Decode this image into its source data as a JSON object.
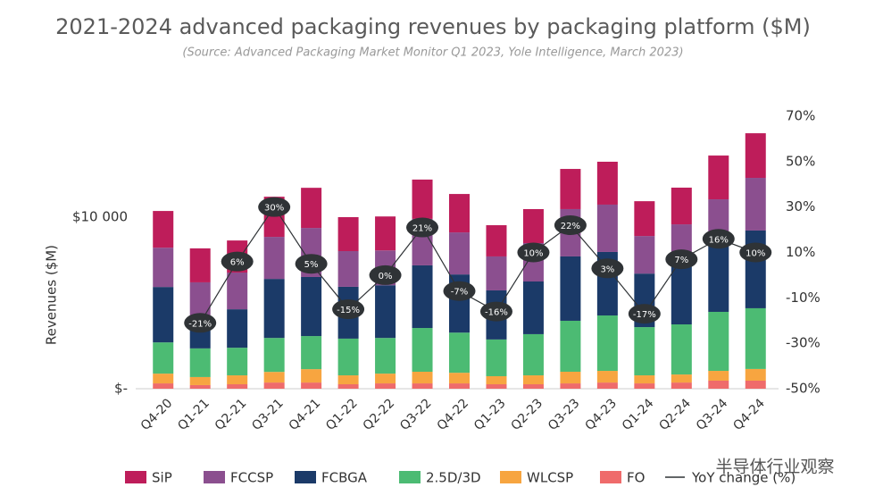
{
  "chart_data": {
    "type": "stacked_bar_line",
    "title": "2021-2024 advanced packaging revenues by packaging platform ($M)",
    "subtitle": "(Source: Advanced Packaging Market Monitor Q1 2023, Yole Intelligence, March 2023)",
    "y_label": "Revenues ($M)",
    "watermark": "半导体行业观察",
    "categories": [
      "Q4-20",
      "Q1-21",
      "Q2-21",
      "Q3-21",
      "Q4-21",
      "Q1-22",
      "Q2-22",
      "Q3-22",
      "Q4-22",
      "Q1-23",
      "Q2-23",
      "Q3-23",
      "Q4-23",
      "Q1-24",
      "Q2-24",
      "Q3-24",
      "Q4-24"
    ],
    "ylim": [
      0,
      15885
    ],
    "yticks": [
      {
        "value": 0,
        "label": "$-"
      },
      {
        "value": 10000,
        "label": "$10 000"
      }
    ],
    "y2lim": [
      -50,
      70
    ],
    "y2ticks": [
      {
        "value": 70,
        "label": "70%"
      },
      {
        "value": 50,
        "label": "50%"
      },
      {
        "value": 30,
        "label": "30%"
      },
      {
        "value": 10,
        "label": "10%"
      },
      {
        "value": -10,
        "label": "-10%"
      },
      {
        "value": -30,
        "label": "-30%"
      },
      {
        "value": -50,
        "label": "-50%"
      }
    ],
    "series": [
      {
        "name": "FO",
        "color": "#ef6b6b",
        "values": [
          310,
          210,
          260,
          360,
          360,
          260,
          310,
          310,
          310,
          260,
          260,
          310,
          360,
          310,
          360,
          470,
          470
        ]
      },
      {
        "name": "WLCSP",
        "color": "#f7a540",
        "values": [
          570,
          470,
          520,
          620,
          780,
          520,
          570,
          680,
          620,
          470,
          520,
          680,
          680,
          470,
          470,
          570,
          680
        ]
      },
      {
        "name": "2.5D/3D",
        "color": "#4cbb73",
        "values": [
          1820,
          1670,
          1610,
          1980,
          1930,
          2140,
          2080,
          2550,
          2340,
          2140,
          2400,
          2970,
          3230,
          2810,
          2920,
          3440,
          3540
        ]
      },
      {
        "name": "FCBGA",
        "color": "#1b3a68",
        "values": [
          3230,
          1820,
          2240,
          3440,
          3440,
          3020,
          3070,
          3650,
          3390,
          2860,
          3070,
          3750,
          3700,
          3120,
          3800,
          4370,
          4530
        ]
      },
      {
        "name": "FCCSP",
        "color": "#8b4f8f",
        "values": [
          2290,
          2030,
          2140,
          2450,
          2860,
          2080,
          2030,
          2710,
          2450,
          1980,
          2240,
          2760,
          2760,
          2190,
          2030,
          2190,
          3070
        ]
      },
      {
        "name": "SiP",
        "color": "#be1d5a",
        "values": [
          2140,
          1980,
          1870,
          2340,
          2340,
          1980,
          1980,
          2290,
          2240,
          1820,
          1980,
          2340,
          2500,
          2030,
          2140,
          2550,
          2600
        ]
      },
      {
        "name": "YoY change (%)",
        "axis": "y2",
        "color": "#2f3336",
        "values": [
          null,
          -21,
          6,
          30,
          5,
          -15,
          0,
          21,
          -7,
          -16,
          10,
          22,
          3,
          -17,
          7,
          16,
          10
        ],
        "value_labels": [
          null,
          "-21%",
          "6%",
          "30%",
          "5%",
          "-15%",
          "0%",
          "21%",
          "-7%",
          "-16%",
          "10%",
          "22%",
          "3%",
          "-17%",
          "7%",
          "16%",
          "10%"
        ]
      }
    ]
  }
}
